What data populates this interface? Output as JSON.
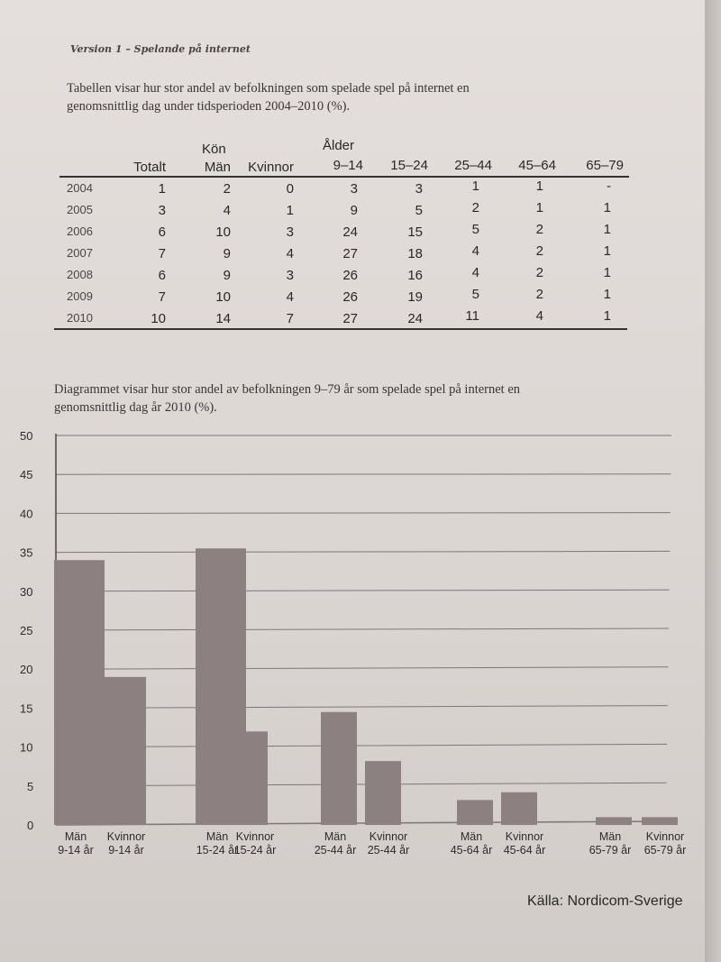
{
  "running_head": "Version 1 – Spelande på internet",
  "table_caption": {
    "line1": "Tabellen visar hur stor andel av befolkningen som spelade spel på internet en",
    "line2": "genomsnittlig dag under tidsperioden 2004–2010 (%)."
  },
  "table": {
    "group_headers": {
      "kon": "Kön",
      "alder": "Ålder"
    },
    "columns": [
      "Totalt",
      "Män",
      "Kvinnor",
      "9–14",
      "15–24",
      "25–44",
      "45–64",
      "65–79"
    ],
    "rows": [
      {
        "year": "2004",
        "cells": [
          "1",
          "2",
          "0",
          "3",
          "3",
          "1",
          "1",
          "-"
        ]
      },
      {
        "year": "2005",
        "cells": [
          "3",
          "4",
          "1",
          "9",
          "5",
          "2",
          "1",
          "1"
        ]
      },
      {
        "year": "2006",
        "cells": [
          "6",
          "10",
          "3",
          "24",
          "15",
          "5",
          "2",
          "1"
        ]
      },
      {
        "year": "2007",
        "cells": [
          "7",
          "9",
          "4",
          "27",
          "18",
          "4",
          "2",
          "1"
        ]
      },
      {
        "year": "2008",
        "cells": [
          "6",
          "9",
          "3",
          "26",
          "16",
          "4",
          "2",
          "1"
        ]
      },
      {
        "year": "2009",
        "cells": [
          "7",
          "10",
          "4",
          "26",
          "19",
          "5",
          "2",
          "1"
        ]
      },
      {
        "year": "2010",
        "cells": [
          "10",
          "14",
          "7",
          "27",
          "24",
          "11",
          "4",
          "1"
        ]
      }
    ]
  },
  "chart_caption": {
    "line1": "Diagrammet visar hur stor andel av befolkningen 9–79 år som spelade spel på internet en",
    "line2": "genomsnittlig dag år 2010 (%)."
  },
  "chart_data": {
    "type": "bar",
    "categories": [
      [
        "Män",
        "9-14 år"
      ],
      [
        "Kvinnor",
        "9-14 år"
      ],
      [
        "Män",
        "15-24 år"
      ],
      [
        "Kvinnor",
        "15-24 år"
      ],
      [
        "Män",
        "25-44 år"
      ],
      [
        "Kvinnor",
        "25-44 år"
      ],
      [
        "Män",
        "45-64 år"
      ],
      [
        "Kvinnor",
        "45-64 år"
      ],
      [
        "Män",
        "65-79 år"
      ],
      [
        "Kvinnor",
        "65-79 år"
      ]
    ],
    "values": [
      34,
      19,
      35.5,
      12,
      14.5,
      8.2,
      3.2,
      4.2,
      1,
      1
    ],
    "ylim": [
      0,
      50
    ],
    "yticks": [
      "0",
      "5",
      "10",
      "15",
      "20",
      "25",
      "30",
      "35",
      "40",
      "45",
      "50"
    ],
    "grid": true,
    "bar_color": "#8c8080"
  },
  "source": "Källa: Nordicom-Sverige"
}
